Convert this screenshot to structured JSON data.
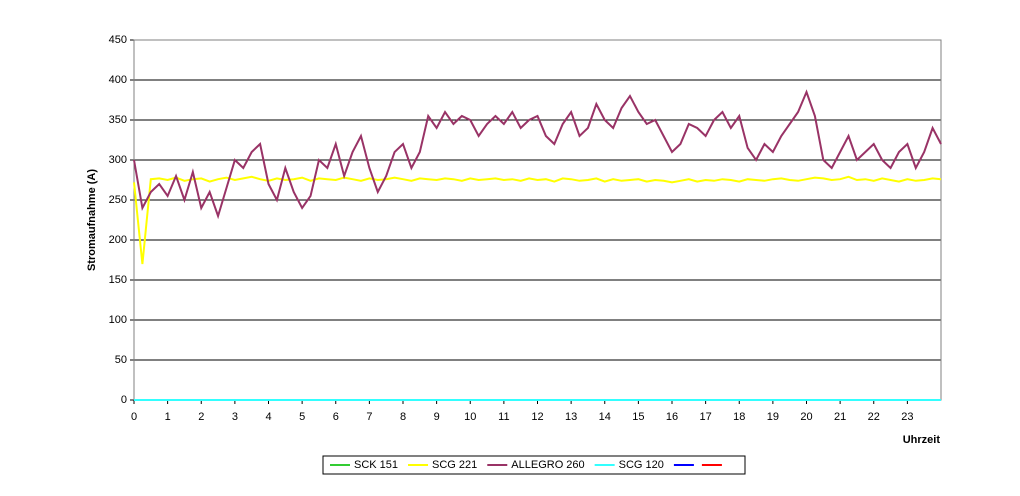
{
  "chart_data": {
    "type": "line",
    "ylabel": "Stromaufnahme (A)",
    "xlabel": "Uhrzeit",
    "xlim": [
      0,
      24
    ],
    "xticks": [
      0,
      1,
      2,
      3,
      4,
      5,
      6,
      7,
      8,
      9,
      10,
      11,
      12,
      13,
      14,
      15,
      16,
      17,
      18,
      19,
      20,
      21,
      22,
      23
    ],
    "ylim": [
      0,
      450
    ],
    "yticks": [
      0,
      50,
      100,
      150,
      200,
      250,
      300,
      350,
      400,
      450
    ],
    "grid": true,
    "x": [
      0,
      0.25,
      0.5,
      0.75,
      1,
      1.25,
      1.5,
      1.75,
      2,
      2.25,
      2.5,
      2.75,
      3,
      3.25,
      3.5,
      3.75,
      4,
      4.25,
      4.5,
      4.75,
      5,
      5.25,
      5.5,
      5.75,
      6,
      6.25,
      6.5,
      6.75,
      7,
      7.25,
      7.5,
      7.75,
      8,
      8.25,
      8.5,
      8.75,
      9,
      9.25,
      9.5,
      9.75,
      10,
      10.25,
      10.5,
      10.75,
      11,
      11.25,
      11.5,
      11.75,
      12,
      12.25,
      12.5,
      12.75,
      13,
      13.25,
      13.5,
      13.75,
      14,
      14.25,
      14.5,
      14.75,
      15,
      15.25,
      15.5,
      15.75,
      16,
      16.25,
      16.5,
      16.75,
      17,
      17.25,
      17.5,
      17.75,
      18,
      18.25,
      18.5,
      18.75,
      19,
      19.25,
      19.5,
      19.75,
      20,
      20.25,
      20.5,
      20.75,
      21,
      21.25,
      21.5,
      21.75,
      22,
      22.25,
      22.5,
      22.75,
      23,
      23.25,
      23.5,
      23.75,
      24
    ],
    "series": [
      {
        "color": "#0000ff",
        "values": [
          0,
          0,
          0,
          0,
          0,
          0,
          0,
          0,
          0,
          0,
          0,
          0,
          0,
          0,
          0,
          0,
          0,
          0,
          0,
          0,
          0,
          0,
          0,
          0,
          0,
          0,
          0,
          0,
          0,
          0,
          0,
          0,
          0,
          0,
          0,
          0,
          0,
          0,
          0,
          0,
          0,
          0,
          0,
          0,
          0,
          0,
          0,
          0,
          0,
          0,
          0,
          0,
          0,
          0,
          0,
          0,
          0,
          0,
          0,
          0,
          0,
          0,
          0,
          0,
          0,
          0,
          0,
          0,
          0,
          0,
          0,
          0,
          0,
          0,
          0,
          0,
          0,
          0,
          0,
          0,
          0,
          0,
          0,
          0,
          0,
          0,
          0,
          0,
          0,
          0,
          0,
          0,
          0,
          0,
          0,
          0,
          0
        ]
      },
      {
        "color": "#ff0000",
        "values": [
          0,
          0,
          0,
          0,
          0,
          0,
          0,
          0,
          0,
          0,
          0,
          0,
          0,
          0,
          0,
          0,
          0,
          0,
          0,
          0,
          0,
          0,
          0,
          0,
          0,
          0,
          0,
          0,
          0,
          0,
          0,
          0,
          0,
          0,
          0,
          0,
          0,
          0,
          0,
          0,
          0,
          0,
          0,
          0,
          0,
          0,
          0,
          0,
          0,
          0,
          0,
          0,
          0,
          0,
          0,
          0,
          0,
          0,
          0,
          0,
          0,
          0,
          0,
          0,
          0,
          0,
          0,
          0,
          0,
          0,
          0,
          0,
          0,
          0,
          0,
          0,
          0,
          0,
          0,
          0,
          0,
          0,
          0,
          0,
          0,
          0,
          0,
          0,
          0,
          0,
          0,
          0,
          0,
          0,
          0,
          0,
          0
        ]
      },
      {
        "name": "SCK 151",
        "color": "#33cc33",
        "values": [
          0,
          0,
          0,
          0,
          0,
          0,
          0,
          0,
          0,
          0,
          0,
          0,
          0,
          0,
          0,
          0,
          0,
          0,
          0,
          0,
          0,
          0,
          0,
          0,
          0,
          0,
          0,
          0,
          0,
          0,
          0,
          0,
          0,
          0,
          0,
          0,
          0,
          0,
          0,
          0,
          0,
          0,
          0,
          0,
          0,
          0,
          0,
          0,
          0,
          0,
          0,
          0,
          0,
          0,
          0,
          0,
          0,
          0,
          0,
          0,
          0,
          0,
          0,
          0,
          0,
          0,
          0,
          0,
          0,
          0,
          0,
          0,
          0,
          0,
          0,
          0,
          0,
          0,
          0,
          0,
          0,
          0,
          0,
          0,
          0,
          0,
          0,
          0,
          0,
          0,
          0,
          0,
          0,
          0,
          0,
          0,
          0
        ]
      },
      {
        "name": "SCG 221",
        "color": "#ffff00",
        "values": [
          272,
          170,
          276,
          277,
          275,
          278,
          274,
          276,
          277,
          273,
          276,
          278,
          275,
          277,
          279,
          276,
          274,
          277,
          275,
          276,
          278,
          274,
          277,
          276,
          275,
          278,
          276,
          274,
          277,
          275,
          276,
          278,
          276,
          274,
          277,
          276,
          275,
          277,
          276,
          274,
          277,
          275,
          276,
          277,
          275,
          276,
          274,
          277,
          275,
          276,
          273,
          277,
          276,
          274,
          275,
          277,
          273,
          276,
          274,
          275,
          276,
          273,
          275,
          274,
          272,
          274,
          276,
          273,
          275,
          274,
          276,
          275,
          273,
          276,
          275,
          274,
          276,
          277,
          275,
          274,
          276,
          278,
          277,
          275,
          276,
          279,
          275,
          276,
          274,
          277,
          275,
          273,
          276,
          274,
          275,
          277,
          276
        ]
      },
      {
        "name": "ALLEGRO 260",
        "color": "#993366",
        "values": [
          300,
          240,
          260,
          270,
          255,
          280,
          250,
          285,
          240,
          260,
          230,
          265,
          300,
          290,
          310,
          320,
          270,
          250,
          290,
          260,
          240,
          255,
          300,
          290,
          320,
          280,
          310,
          330,
          290,
          260,
          280,
          310,
          320,
          290,
          310,
          355,
          340,
          360,
          345,
          355,
          350,
          330,
          345,
          355,
          345,
          360,
          340,
          350,
          355,
          330,
          320,
          345,
          360,
          330,
          340,
          370,
          350,
          340,
          365,
          380,
          360,
          345,
          350,
          330,
          310,
          320,
          345,
          340,
          330,
          350,
          360,
          340,
          355,
          315,
          300,
          320,
          310,
          330,
          345,
          360,
          385,
          355,
          300,
          290,
          310,
          330,
          300,
          310,
          320,
          300,
          290,
          310,
          320,
          290,
          310,
          340,
          320
        ]
      },
      {
        "name": "SCG 120",
        "color": "#33ffff",
        "values": [
          0,
          0,
          0,
          0,
          0,
          0,
          0,
          0,
          0,
          0,
          0,
          0,
          0,
          0,
          0,
          0,
          0,
          0,
          0,
          0,
          0,
          0,
          0,
          0,
          0,
          0,
          0,
          0,
          0,
          0,
          0,
          0,
          0,
          0,
          0,
          0,
          0,
          0,
          0,
          0,
          0,
          0,
          0,
          0,
          0,
          0,
          0,
          0,
          0,
          0,
          0,
          0,
          0,
          0,
          0,
          0,
          0,
          0,
          0,
          0,
          0,
          0,
          0,
          0,
          0,
          0,
          0,
          0,
          0,
          0,
          0,
          0,
          0,
          0,
          0,
          0,
          0,
          0,
          0,
          0,
          0,
          0,
          0,
          0,
          0,
          0,
          0,
          0,
          0,
          0,
          0,
          0,
          0,
          0,
          0,
          0,
          0
        ]
      }
    ],
    "legend_order": [
      2,
      3,
      4,
      5,
      0,
      1
    ]
  }
}
